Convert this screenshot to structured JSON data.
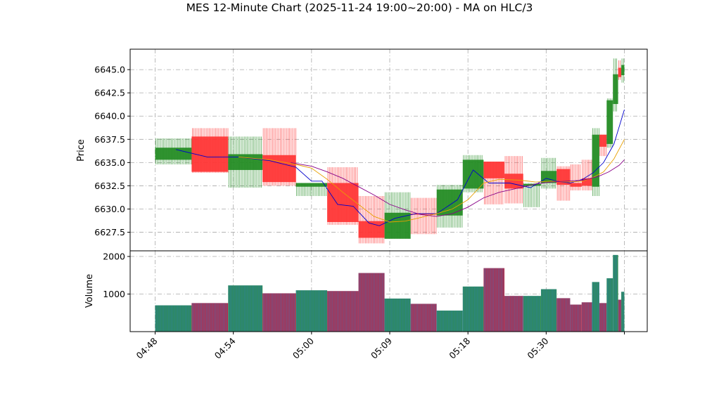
{
  "chart_data": {
    "type": "candlestick",
    "title": "MES 12-Minute Chart (2025-11-24 19:00~20:00) - MA on HLC/3",
    "price_panel": {
      "ylabel": "Price",
      "ylim": [
        6625.5,
        6647.2
      ],
      "yticks": [
        "6627.5",
        "6630.0",
        "6632.5",
        "6635.0",
        "6637.5",
        "6640.0",
        "6642.5",
        "6645.0"
      ],
      "grid": true
    },
    "volume_panel": {
      "ylabel": "Volume",
      "ylim": [
        0,
        2150
      ],
      "yticks": [
        "1000",
        "2000"
      ],
      "grid": true
    },
    "xlim": [
      0,
      45
    ],
    "xticks": [
      {
        "x": 0,
        "label": "04:48"
      },
      {
        "x": 7.5,
        "label": "04:54"
      },
      {
        "x": 15,
        "label": "05:00"
      },
      {
        "x": 22.5,
        "label": "05:09"
      },
      {
        "x": 30,
        "label": "05:18"
      },
      {
        "x": 37.5,
        "label": "05:30"
      },
      {
        "x": 45,
        "label": ""
      }
    ],
    "candles": [
      {
        "x0": 0.0,
        "x1": 3.5,
        "open": 6635.3,
        "close": 6636.6,
        "high": 6637.6,
        "low": 6634.8,
        "volume": 700
      },
      {
        "x0": 3.5,
        "x1": 7.0,
        "open": 6637.8,
        "close": 6634.0,
        "high": 6638.7,
        "low": 6633.9,
        "volume": 760
      },
      {
        "x0": 7.0,
        "x1": 10.3,
        "open": 6634.2,
        "close": 6635.9,
        "high": 6637.8,
        "low": 6632.3,
        "volume": 1230
      },
      {
        "x0": 10.3,
        "x1": 13.5,
        "open": 6635.8,
        "close": 6632.9,
        "high": 6638.7,
        "low": 6632.5,
        "volume": 1020
      },
      {
        "x0": 13.5,
        "x1": 16.5,
        "open": 6632.4,
        "close": 6632.8,
        "high": 6632.8,
        "low": 6631.4,
        "volume": 1100
      },
      {
        "x0": 16.5,
        "x1": 19.5,
        "open": 6632.8,
        "close": 6628.6,
        "high": 6634.5,
        "low": 6628.3,
        "volume": 1080
      },
      {
        "x0": 19.5,
        "x1": 22.0,
        "open": 6628.7,
        "close": 6626.9,
        "high": 6631.4,
        "low": 6626.3,
        "volume": 1560
      },
      {
        "x0": 22.0,
        "x1": 24.5,
        "open": 6626.8,
        "close": 6629.6,
        "high": 6631.8,
        "low": 6626.8,
        "volume": 880
      },
      {
        "x0": 24.5,
        "x1": 27.0,
        "open": 6629.5,
        "close": 6629.4,
        "high": 6631.2,
        "low": 6627.3,
        "volume": 740
      },
      {
        "x0": 27.0,
        "x1": 29.5,
        "open": 6629.3,
        "close": 6632.1,
        "high": 6632.6,
        "low": 6628.0,
        "volume": 560
      },
      {
        "x0": 29.5,
        "x1": 31.5,
        "open": 6632.2,
        "close": 6635.3,
        "high": 6635.8,
        "low": 6631.8,
        "volume": 1200
      },
      {
        "x0": 31.5,
        "x1": 33.5,
        "open": 6635.1,
        "close": 6633.3,
        "high": 6635.1,
        "low": 6630.5,
        "volume": 1690
      },
      {
        "x0": 33.5,
        "x1": 35.3,
        "open": 6633.8,
        "close": 6632.2,
        "high": 6635.7,
        "low": 6630.6,
        "volume": 950
      },
      {
        "x0": 35.3,
        "x1": 37.0,
        "open": 6632.5,
        "close": 6632.7,
        "high": 6632.8,
        "low": 6630.2,
        "volume": 950
      },
      {
        "x0": 37.0,
        "x1": 38.5,
        "open": 6632.8,
        "close": 6634.1,
        "high": 6635.5,
        "low": 6632.2,
        "volume": 1130
      },
      {
        "x0": 38.5,
        "x1": 39.8,
        "open": 6634.3,
        "close": 6632.6,
        "high": 6634.6,
        "low": 6630.9,
        "volume": 890
      },
      {
        "x0": 39.8,
        "x1": 40.9,
        "open": 6632.8,
        "close": 6632.4,
        "high": 6634.8,
        "low": 6632.0,
        "volume": 720
      },
      {
        "x0": 40.9,
        "x1": 41.9,
        "open": 6633.3,
        "close": 6632.5,
        "high": 6635.3,
        "low": 6632.0,
        "volume": 780
      },
      {
        "x0": 41.9,
        "x1": 42.6,
        "open": 6632.4,
        "close": 6638.0,
        "high": 6638.7,
        "low": 6631.4,
        "volume": 1320
      },
      {
        "x0": 42.6,
        "x1": 43.3,
        "open": 6638.0,
        "close": 6636.7,
        "high": 6638.0,
        "low": 6635.7,
        "volume": 760
      },
      {
        "x0": 43.3,
        "x1": 43.9,
        "open": 6637.0,
        "close": 6641.7,
        "high": 6641.9,
        "low": 6636.6,
        "volume": 1420
      },
      {
        "x0": 43.9,
        "x1": 44.4,
        "open": 6641.3,
        "close": 6644.5,
        "high": 6646.2,
        "low": 6640.5,
        "volume": 2040
      },
      {
        "x0": 44.4,
        "x1": 44.7,
        "open": 6645.2,
        "close": 6644.2,
        "high": 6646.0,
        "low": 6643.9,
        "volume": 850
      },
      {
        "x0": 44.7,
        "x1": 45.0,
        "open": 6644.4,
        "close": 6645.5,
        "high": 6646.2,
        "low": 6643.6,
        "volume": 1060
      }
    ],
    "moving_averages": [
      {
        "color": "#0000cc",
        "x": [
          2,
          5,
          8,
          11,
          13.5,
          15,
          16,
          17.5,
          19,
          20.5,
          21.5,
          23,
          25,
          27,
          29,
          30.5,
          32,
          34,
          36,
          37.5,
          38.5,
          39.8,
          41,
          42,
          43,
          44,
          45
        ],
        "y": [
          6636.4,
          6635.6,
          6635.6,
          6635.2,
          6634.5,
          6633.0,
          6633.0,
          6630.5,
          6630.3,
          6628.5,
          6628.2,
          6629.0,
          6629.5,
          6629.5,
          6631.0,
          6634.2,
          6632.8,
          6632.8,
          6632.3,
          6633.3,
          6633.0,
          6632.8,
          6633.2,
          6633.9,
          6635.0,
          6637.0,
          6640.7
        ]
      },
      {
        "color": "#e8a000",
        "x": [
          8,
          11,
          13.5,
          15,
          16.5,
          18,
          19.5,
          21,
          22.5,
          24,
          25.5,
          27,
          28.5,
          30,
          31.5,
          33,
          35,
          36.5,
          38,
          39.5,
          41,
          42,
          43,
          44,
          45
        ],
        "y": [
          6635.6,
          6635.3,
          6634.8,
          6634.4,
          6633.2,
          6631.8,
          6630.5,
          6629.2,
          6628.6,
          6628.7,
          6629.1,
          6629.5,
          6630.0,
          6631.0,
          6632.8,
          6633.2,
          6633.1,
          6632.9,
          6633.0,
          6632.9,
          6633.0,
          6633.4,
          6634.0,
          6635.4,
          6637.5
        ]
      },
      {
        "color": "#880088",
        "x": [
          13,
          15,
          16.5,
          18,
          19.5,
          21,
          22.5,
          24,
          25.5,
          27,
          28.5,
          30,
          31.5,
          33,
          35,
          36.5,
          38,
          39.5,
          41,
          42.5,
          43.5,
          44.5,
          45
        ],
        "y": [
          6635.0,
          6634.6,
          6634.0,
          6633.3,
          6632.4,
          6631.5,
          6630.5,
          6629.9,
          6629.4,
          6629.2,
          6629.5,
          6630.2,
          6631.2,
          6631.8,
          6632.3,
          6632.7,
          6632.9,
          6633.0,
          6633.1,
          6633.5,
          6634.0,
          6634.7,
          6635.3
        ]
      }
    ],
    "colors": {
      "up": "#228b22",
      "down": "#ff3333",
      "vol_up": "#2e8b57",
      "vol_down": "#b03050",
      "vol_stripe": "#2b7bc4",
      "grid": "#aaaaaa"
    }
  }
}
